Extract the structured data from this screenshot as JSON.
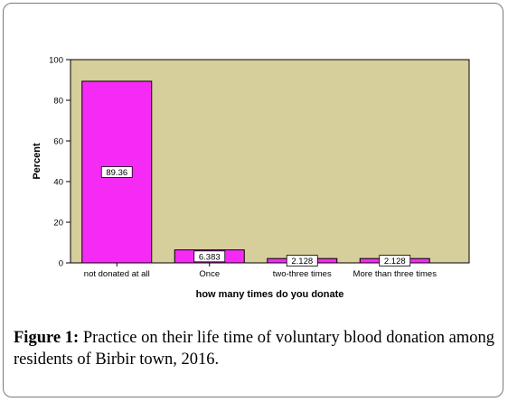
{
  "chart_data": {
    "type": "bar",
    "categories": [
      "not donated at all",
      "Once",
      "two-three times",
      "More than three times"
    ],
    "values": [
      89.36,
      6.383,
      2.128,
      2.128
    ],
    "data_labels": [
      "89.36",
      "6.383",
      "2.128",
      "2.128"
    ],
    "xlabel": "how many times do you donate",
    "ylabel": "Percent",
    "ylim": [
      0,
      100
    ],
    "yticks": [
      0,
      20,
      40,
      60,
      80,
      100
    ],
    "grid": false,
    "colors": {
      "plot_background": "#d6ce9b",
      "bar_fill": "#f52af5",
      "bar_stroke": "#000000"
    }
  },
  "caption": {
    "label": "Figure 1:",
    "text": " Practice on their life time of voluntary blood donation among residents of Birbir town, 2016."
  }
}
